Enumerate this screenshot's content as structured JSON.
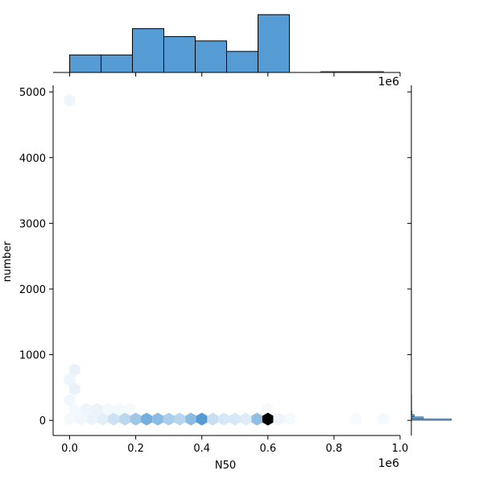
{
  "chart_data": {
    "type": "hexbin-jointplot",
    "xlabel": "N50",
    "ylabel": "number",
    "x_offset_label": "1e6",
    "top_offset_label": "1e6",
    "xlim": [
      -0.05,
      1.0
    ],
    "ylim": [
      -230,
      5100
    ],
    "x_ticks": [
      0.0,
      0.2,
      0.4,
      0.6,
      0.8,
      1.0
    ],
    "x_tick_labels": [
      "0.0",
      "0.2",
      "0.4",
      "0.6",
      "0.8",
      "1.0"
    ],
    "y_ticks": [
      0,
      1000,
      2000,
      3000,
      4000,
      5000
    ],
    "y_tick_labels": [
      "0",
      "1000",
      "2000",
      "3000",
      "4000",
      "5000"
    ],
    "accent": "#4c96d2",
    "hex_max_color": "#000000",
    "hexbins": [
      {
        "x": 0.0,
        "y": 4870,
        "c": 0.06
      },
      {
        "x": 0.015,
        "y": 770,
        "c": 0.08
      },
      {
        "x": 0.0,
        "y": 620,
        "c": 0.06
      },
      {
        "x": 0.015,
        "y": 480,
        "c": 0.08
      },
      {
        "x": 0.0,
        "y": 310,
        "c": 0.05
      },
      {
        "x": 0.015,
        "y": 150,
        "c": 0.04
      },
      {
        "x": 0.05,
        "y": 170,
        "c": 0.06
      },
      {
        "x": 0.083,
        "y": 170,
        "c": 0.07
      },
      {
        "x": 0.117,
        "y": 170,
        "c": 0.04
      },
      {
        "x": 0.15,
        "y": 170,
        "c": 0.04
      },
      {
        "x": 0.183,
        "y": 170,
        "c": 0.03
      },
      {
        "x": 0.6,
        "y": 170,
        "c": 0.03
      },
      {
        "x": 0.0,
        "y": 20,
        "c": 0.04
      },
      {
        "x": 0.033,
        "y": 20,
        "c": 0.05
      },
      {
        "x": 0.067,
        "y": 20,
        "c": 0.07
      },
      {
        "x": 0.1,
        "y": 20,
        "c": 0.1
      },
      {
        "x": 0.133,
        "y": 20,
        "c": 0.18
      },
      {
        "x": 0.167,
        "y": 20,
        "c": 0.25
      },
      {
        "x": 0.2,
        "y": 20,
        "c": 0.35
      },
      {
        "x": 0.233,
        "y": 20,
        "c": 0.5
      },
      {
        "x": 0.267,
        "y": 20,
        "c": 0.42
      },
      {
        "x": 0.3,
        "y": 20,
        "c": 0.3
      },
      {
        "x": 0.333,
        "y": 20,
        "c": 0.26
      },
      {
        "x": 0.367,
        "y": 20,
        "c": 0.42
      },
      {
        "x": 0.4,
        "y": 20,
        "c": 0.62
      },
      {
        "x": 0.433,
        "y": 20,
        "c": 0.2
      },
      {
        "x": 0.467,
        "y": 20,
        "c": 0.15
      },
      {
        "x": 0.5,
        "y": 20,
        "c": 0.15
      },
      {
        "x": 0.533,
        "y": 20,
        "c": 0.12
      },
      {
        "x": 0.567,
        "y": 20,
        "c": 0.4
      },
      {
        "x": 0.6,
        "y": 20,
        "c": 1.0
      },
      {
        "x": 0.633,
        "y": 20,
        "c": 0.06
      },
      {
        "x": 0.667,
        "y": 20,
        "c": 0.04
      },
      {
        "x": 0.867,
        "y": 20,
        "c": 0.03
      },
      {
        "x": 0.95,
        "y": 20,
        "c": 0.04
      }
    ],
    "top_histogram": {
      "bins": [
        {
          "x0": 0.0,
          "x1": 0.095,
          "count": 2
        },
        {
          "x0": 0.095,
          "x1": 0.19,
          "count": 2
        },
        {
          "x0": 0.19,
          "x1": 0.285,
          "count": 5
        },
        {
          "x0": 0.285,
          "x1": 0.38,
          "count": 4.1
        },
        {
          "x0": 0.38,
          "x1": 0.475,
          "count": 3.6
        },
        {
          "x0": 0.475,
          "x1": 0.57,
          "count": 2.4
        },
        {
          "x0": 0.57,
          "x1": 0.665,
          "count": 6.6
        },
        {
          "x0": 0.665,
          "x1": 0.76,
          "count": 0
        },
        {
          "x0": 0.76,
          "x1": 0.855,
          "count": 0.1
        },
        {
          "x0": 0.855,
          "x1": 0.95,
          "count": 0.1
        }
      ],
      "max": 6.8
    },
    "right_histogram": {
      "bins": [
        {
          "y0": 0,
          "y1": 25,
          "count": 5.3
        },
        {
          "y0": 25,
          "y1": 55,
          "count": 1.6
        },
        {
          "y0": 55,
          "y1": 90,
          "count": 0.4
        },
        {
          "y0": 90,
          "y1": 150,
          "count": 0.1
        },
        {
          "y0": 150,
          "y1": 400,
          "count": 0.05
        },
        {
          "y0": 400,
          "y1": 800,
          "count": 0.02
        }
      ],
      "max": 8.5
    }
  }
}
